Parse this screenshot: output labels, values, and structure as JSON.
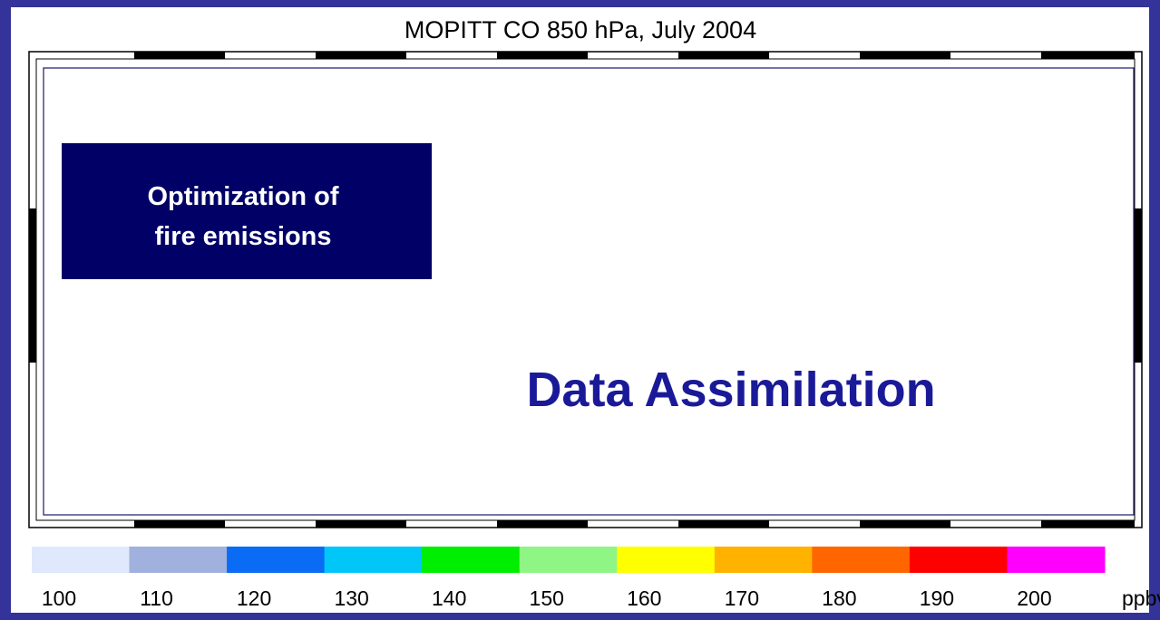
{
  "title": "MOPITT CO 850 hPa, July 2004",
  "box": {
    "lines": [
      "Optimization of",
      "fire emissions"
    ]
  },
  "headline": "Data Assimilation",
  "colorbar": {
    "ticks": [
      100,
      110,
      120,
      130,
      140,
      150,
      160,
      170,
      180,
      190,
      200
    ],
    "colors": [
      "#dfe9fb",
      "#9fb1dc",
      "#0a6bf5",
      "#00c7f7",
      "#00ee00",
      "#8ff585",
      "#ffff00",
      "#ffb300",
      "#ff6600",
      "#ff0000",
      "#ff00ff"
    ],
    "unit": "ppbv"
  }
}
